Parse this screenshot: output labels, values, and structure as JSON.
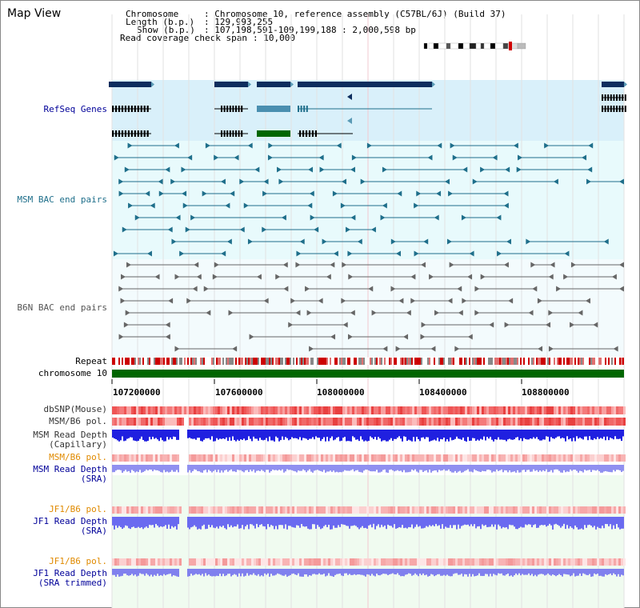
{
  "header": {
    "view_title": "Map View",
    "chromosome_label": "Chromosome",
    "chromosome_value": ": Chromosome 10, reference assembly (C57BL/6J) (Build 37)",
    "length_label": "Length (b.p.)",
    "length_value": ": 129,993,255",
    "show_label": "Show (b.p.)",
    "show_value": ": 107,198,591-109,199,188 : 2,000,598 bp",
    "coverage_label": "Read coverage check span",
    "coverage_value": ": 10,000"
  },
  "tracks": {
    "refseq": "RefSeq Genes",
    "msm_bac": "MSM BAC end pairs",
    "b6n_bac": "B6N BAC end pairs",
    "repeat": "Repeat",
    "chromosome": "chromosome 10",
    "dbsnp": "dbSNP(Mouse)",
    "msm_b6_pol_1": "MSM/B6 pol.",
    "msm_depth_cap_1": "MSM Read Depth",
    "msm_depth_cap_2": "(Capillary)",
    "msm_b6_pol_2": "MSM/B6 pol.",
    "msm_depth_sra_1": "MSM Read Depth",
    "msm_depth_sra_2": "(SRA)",
    "jf1_b6_pol_1": "JF1/B6 pol.",
    "jf1_depth_sra_1": "JF1 Read Depth",
    "jf1_depth_sra_2": "(SRA)",
    "jf1_b6_pol_2": "JF1/B6 pol.",
    "jf1_depth_trim_1": "JF1 Read Depth",
    "jf1_depth_trim_2": "(SRA trimmed)"
  },
  "axis": {
    "ticks": [
      "107200000",
      "107600000",
      "108000000",
      "108400000",
      "108800000"
    ]
  },
  "colors": {
    "refseq_bg": "#d9f0fa",
    "msm_bg": "#e8fafc",
    "b6n_bg": "#f3fbfd",
    "gene_dark": "#0d2d5e",
    "msm_line": "#1f6f8b",
    "b6n_line": "#666666",
    "chromosome": "#006600",
    "label_blue": "#000099",
    "label_teal": "#1f6f8b",
    "label_orange": "#e08a00"
  }
}
